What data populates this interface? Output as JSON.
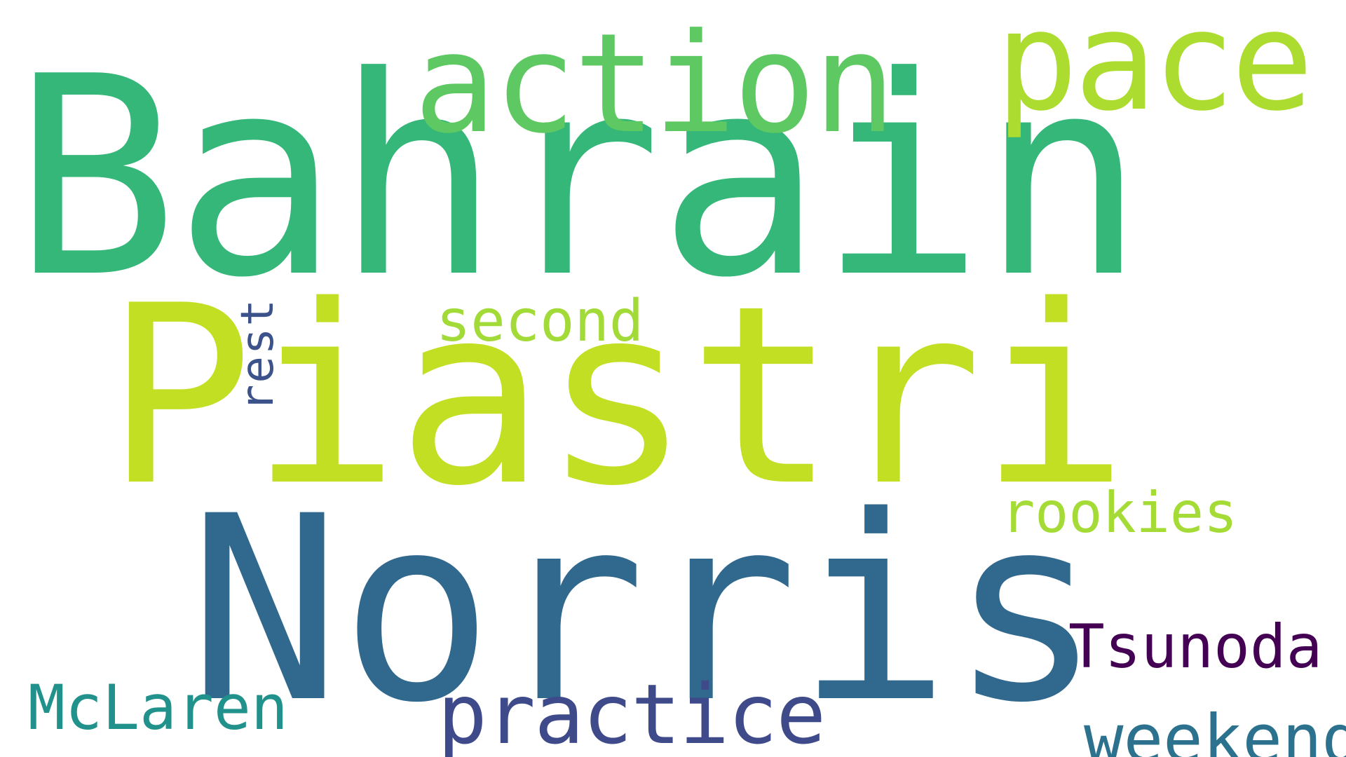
{
  "word_cloud": {
    "words": [
      {
        "text": "Bahrain",
        "color": "#35b779"
      },
      {
        "text": "Norris",
        "color": "#31688e"
      },
      {
        "text": "Piastri",
        "color": "#c2df23"
      },
      {
        "text": "action",
        "color": "#5ec962"
      },
      {
        "text": "pace",
        "color": "#addc30"
      },
      {
        "text": "second",
        "color": "#a2da37"
      },
      {
        "text": "rest",
        "color": "#3b528b"
      },
      {
        "text": "rookies",
        "color": "#a5db36"
      },
      {
        "text": "Tsunoda",
        "color": "#440154"
      },
      {
        "text": "practice",
        "color": "#3e4a89"
      },
      {
        "text": "McLaren",
        "color": "#21918c"
      },
      {
        "text": "weekend",
        "color": "#2c728e"
      }
    ]
  }
}
